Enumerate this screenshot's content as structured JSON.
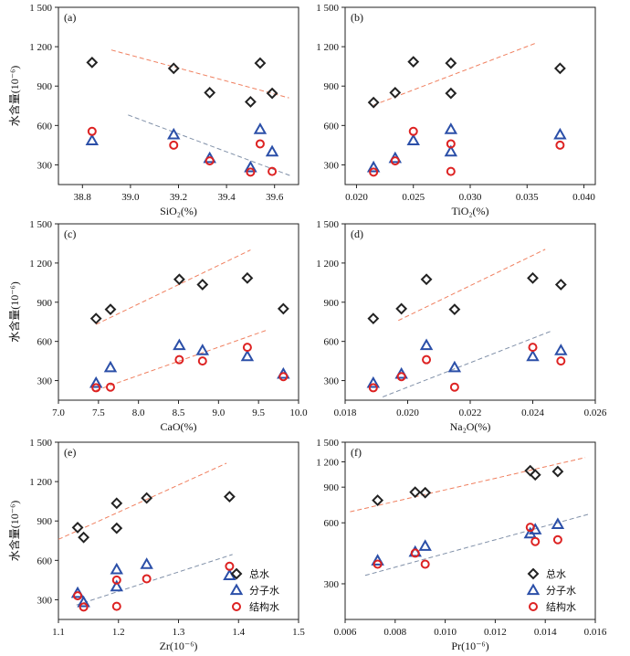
{
  "y_axis_label": "水含量(10⁻⁶)",
  "chart_data": [
    {
      "id": "a",
      "type": "scatter",
      "panel_label": "(a)",
      "xlabel": "SiO₂(%)",
      "ylabel": "水含量(10⁻⁶)",
      "xlim": [
        38.7,
        39.7
      ],
      "ylim": [
        150,
        1500
      ],
      "xticks": [
        "38.8",
        "39.0",
        "39.2",
        "39.4",
        "39.6"
      ],
      "xtick_values": [
        38.8,
        39.0,
        39.2,
        39.4,
        39.6
      ],
      "yticks": [
        "300",
        "600",
        "900",
        "1 200",
        "1 500"
      ],
      "ytick_values": [
        300,
        600,
        900,
        1200,
        1500
      ],
      "series": [
        {
          "name": "总水",
          "marker": "diamond",
          "color": "#222222",
          "x": [
            38.84,
            39.18,
            39.33,
            39.5,
            39.54,
            39.59
          ],
          "y": [
            1080,
            1035,
            850,
            780,
            1075,
            845
          ]
        },
        {
          "name": "分子水",
          "marker": "triangle",
          "color": "#2b4fa8",
          "x": [
            38.84,
            39.18,
            39.33,
            39.5,
            39.54,
            39.59
          ],
          "y": [
            485,
            530,
            350,
            280,
            570,
            400
          ]
        },
        {
          "name": "结构水",
          "marker": "circle",
          "color": "#dd2222",
          "x": [
            38.84,
            39.18,
            39.33,
            39.5,
            39.54,
            39.59
          ],
          "y": [
            555,
            450,
            330,
            245,
            460,
            250
          ]
        }
      ],
      "trend_lines": [
        {
          "color": "#f08060",
          "x": [
            38.92,
            39.66
          ],
          "y": [
            1175,
            810
          ]
        },
        {
          "color": "#8090a8",
          "x": [
            38.99,
            39.67
          ],
          "y": [
            680,
            215
          ]
        }
      ]
    },
    {
      "id": "b",
      "type": "scatter",
      "panel_label": "(b)",
      "xlabel": "TiO₂(%)",
      "ylabel": "",
      "xlim": [
        0.019,
        0.041
      ],
      "ylim": [
        150,
        1500
      ],
      "xticks": [
        "0.020",
        "0.025",
        "0.030",
        "0.035",
        "0.040"
      ],
      "xtick_values": [
        0.02,
        0.025,
        0.03,
        0.035,
        0.04
      ],
      "yticks": [
        "300",
        "600",
        "900",
        "1 200",
        "1 500"
      ],
      "ytick_values": [
        300,
        600,
        900,
        1200,
        1500
      ],
      "series": [
        {
          "name": "总水",
          "marker": "diamond",
          "color": "#222222",
          "x": [
            0.0215,
            0.0234,
            0.025,
            0.0283,
            0.0283,
            0.0379
          ],
          "y": [
            775,
            850,
            1085,
            1075,
            845,
            1035
          ]
        },
        {
          "name": "分子水",
          "marker": "triangle",
          "color": "#2b4fa8",
          "x": [
            0.0215,
            0.0234,
            0.025,
            0.0283,
            0.0283,
            0.0379
          ],
          "y": [
            280,
            350,
            485,
            570,
            400,
            530
          ]
        },
        {
          "name": "结构水",
          "marker": "circle",
          "color": "#dd2222",
          "x": [
            0.0215,
            0.0234,
            0.025,
            0.0283,
            0.0283,
            0.0379
          ],
          "y": [
            245,
            330,
            555,
            460,
            250,
            450
          ]
        }
      ],
      "trend_lines": [
        {
          "color": "#f08060",
          "x": [
            0.0215,
            0.0357
          ],
          "y": [
            755,
            1225
          ]
        }
      ]
    },
    {
      "id": "c",
      "type": "scatter",
      "panel_label": "(c)",
      "xlabel": "CaO(%)",
      "ylabel": "水含量(10⁻⁶)",
      "xlim": [
        7.0,
        10.0
      ],
      "ylim": [
        150,
        1500
      ],
      "xticks": [
        "7.0",
        "7.5",
        "8.0",
        "8.5",
        "9.0",
        "9.5",
        "10.0"
      ],
      "xtick_values": [
        7.0,
        7.5,
        8.0,
        8.5,
        9.0,
        9.5,
        10.0
      ],
      "yticks": [
        "300",
        "600",
        "900",
        "1 200",
        "1 500"
      ],
      "ytick_values": [
        300,
        600,
        900,
        1200,
        1500
      ],
      "series": [
        {
          "name": "总水",
          "marker": "diamond",
          "color": "#222222",
          "x": [
            7.47,
            7.65,
            8.51,
            8.8,
            9.36,
            9.81
          ],
          "y": [
            775,
            845,
            1075,
            1035,
            1085,
            850
          ]
        },
        {
          "name": "分子水",
          "marker": "triangle",
          "color": "#2b4fa8",
          "x": [
            7.47,
            7.65,
            8.51,
            8.8,
            9.36,
            9.81
          ],
          "y": [
            280,
            400,
            570,
            530,
            485,
            350
          ]
        },
        {
          "name": "结构水",
          "marker": "circle",
          "color": "#dd2222",
          "x": [
            7.47,
            7.65,
            8.51,
            8.8,
            9.36,
            9.81
          ],
          "y": [
            245,
            250,
            460,
            450,
            555,
            330
          ]
        }
      ],
      "trend_lines": [
        {
          "color": "#f08060",
          "x": [
            7.47,
            9.4
          ],
          "y": [
            730,
            1300
          ]
        },
        {
          "color": "#f08060",
          "x": [
            7.47,
            9.62
          ],
          "y": [
            225,
            690
          ]
        }
      ]
    },
    {
      "id": "d",
      "type": "scatter",
      "panel_label": "(d)",
      "xlabel": "Na₂O(%)",
      "ylabel": "",
      "xlim": [
        0.018,
        0.026
      ],
      "ylim": [
        150,
        1500
      ],
      "xticks": [
        "0.018",
        "0.020",
        "0.022",
        "0.024",
        "0.026"
      ],
      "xtick_values": [
        0.018,
        0.02,
        0.022,
        0.024,
        0.026
      ],
      "yticks": [
        "300",
        "600",
        "900",
        "1 200",
        "1 500"
      ],
      "ytick_values": [
        300,
        600,
        900,
        1200,
        1500
      ],
      "series": [
        {
          "name": "总水",
          "marker": "diamond",
          "color": "#222222",
          "x": [
            0.0189,
            0.0198,
            0.0206,
            0.0215,
            0.024,
            0.0249
          ],
          "y": [
            775,
            850,
            1075,
            845,
            1085,
            1035
          ]
        },
        {
          "name": "分子水",
          "marker": "triangle",
          "color": "#2b4fa8",
          "x": [
            0.0189,
            0.0198,
            0.0206,
            0.0215,
            0.024,
            0.0249
          ],
          "y": [
            280,
            350,
            570,
            400,
            485,
            530
          ]
        },
        {
          "name": "结构水",
          "marker": "circle",
          "color": "#dd2222",
          "x": [
            0.0189,
            0.0198,
            0.0206,
            0.0215,
            0.024,
            0.0249
          ],
          "y": [
            245,
            330,
            460,
            250,
            555,
            450
          ]
        }
      ],
      "trend_lines": [
        {
          "color": "#f08060",
          "x": [
            0.0197,
            0.0244
          ],
          "y": [
            760,
            1305
          ]
        },
        {
          "color": "#8090a8",
          "x": [
            0.0192,
            0.0246
          ],
          "y": [
            175,
            680
          ]
        }
      ]
    },
    {
      "id": "e",
      "type": "scatter",
      "panel_label": "(e)",
      "xlabel": "Zr(10⁻⁶)",
      "ylabel": "水含量(10⁻⁶)",
      "xlim": [
        1.1,
        1.5
      ],
      "ylim": [
        150,
        1500
      ],
      "xticks": [
        "1.1",
        "1.2",
        "1.3",
        "1.4",
        "1.5"
      ],
      "xtick_values": [
        1.1,
        1.2,
        1.3,
        1.4,
        1.5
      ],
      "yticks": [
        "300",
        "600",
        "900",
        "1 200",
        "1 500"
      ],
      "ytick_values": [
        300,
        600,
        900,
        1200,
        1500
      ],
      "series": [
        {
          "name": "总水",
          "marker": "diamond",
          "color": "#222222",
          "x": [
            1.132,
            1.142,
            1.197,
            1.197,
            1.247,
            1.385
          ],
          "y": [
            850,
            775,
            1035,
            845,
            1075,
            1085
          ]
        },
        {
          "name": "分子水",
          "marker": "triangle",
          "color": "#2b4fa8",
          "x": [
            1.132,
            1.142,
            1.197,
            1.197,
            1.247,
            1.385
          ],
          "y": [
            350,
            280,
            530,
            400,
            570,
            485
          ]
        },
        {
          "name": "结构水",
          "marker": "circle",
          "color": "#dd2222",
          "x": [
            1.132,
            1.142,
            1.197,
            1.197,
            1.247,
            1.385
          ],
          "y": [
            330,
            245,
            450,
            250,
            460,
            555
          ]
        }
      ],
      "trend_lines": [
        {
          "color": "#f08060",
          "x": [
            1.1,
            1.38
          ],
          "y": [
            760,
            1340
          ]
        },
        {
          "color": "#8090a8",
          "x": [
            1.13,
            1.39
          ],
          "y": [
            260,
            645
          ]
        }
      ],
      "legend": {
        "placement": "bottom-right",
        "entries": [
          {
            "label": "总水",
            "marker": "diamond",
            "color": "#222222"
          },
          {
            "label": "分子水",
            "marker": "triangle",
            "color": "#2b4fa8"
          },
          {
            "label": "结构水",
            "marker": "circle",
            "color": "#dd2222"
          }
        ]
      }
    },
    {
      "id": "f",
      "type": "scatter",
      "panel_label": "(f)",
      "xlabel": "Pr(10⁻⁶)",
      "ylabel": "",
      "xlim": [
        0.006,
        0.016
      ],
      "ylim": [
        200,
        1500
      ],
      "yscale": "log",
      "xticks": [
        "0.006",
        "0.008",
        "0.010",
        "0.012",
        "0.014",
        "0.016"
      ],
      "xtick_values": [
        0.006,
        0.008,
        0.01,
        0.012,
        0.014,
        0.016
      ],
      "yticks": [
        "300",
        "600",
        "900",
        "1 200",
        "1 500"
      ],
      "ytick_values": [
        300,
        600,
        900,
        1200,
        1500
      ],
      "series": [
        {
          "name": "总水",
          "marker": "diamond",
          "color": "#222222",
          "x": [
            0.0073,
            0.0088,
            0.0092,
            0.0134,
            0.0136,
            0.0145
          ],
          "y": [
            775,
            850,
            845,
            1085,
            1035,
            1075
          ]
        },
        {
          "name": "分子水",
          "marker": "triangle",
          "color": "#2b4fa8",
          "x": [
            0.0073,
            0.0088,
            0.0092,
            0.0134,
            0.0136,
            0.0145
          ],
          "y": [
            390,
            430,
            460,
            530,
            555,
            590
          ]
        },
        {
          "name": "结构水",
          "marker": "circle",
          "color": "#dd2222",
          "x": [
            0.0073,
            0.0088,
            0.0092,
            0.0134,
            0.0136,
            0.0145
          ],
          "y": [
            375,
            425,
            375,
            570,
            485,
            495
          ]
        }
      ],
      "trend_lines": [
        {
          "color": "#f08060",
          "x": [
            0.0062,
            0.0156
          ],
          "y": [
            680,
            1260
          ]
        },
        {
          "color": "#8090a8",
          "x": [
            0.0068,
            0.0158
          ],
          "y": [
            330,
            665
          ]
        }
      ],
      "legend": {
        "placement": "bottom-right",
        "entries": [
          {
            "label": "总水",
            "marker": "diamond",
            "color": "#222222"
          },
          {
            "label": "分子水",
            "marker": "triangle",
            "color": "#2b4fa8"
          },
          {
            "label": "结构水",
            "marker": "circle",
            "color": "#dd2222"
          }
        ]
      }
    }
  ]
}
